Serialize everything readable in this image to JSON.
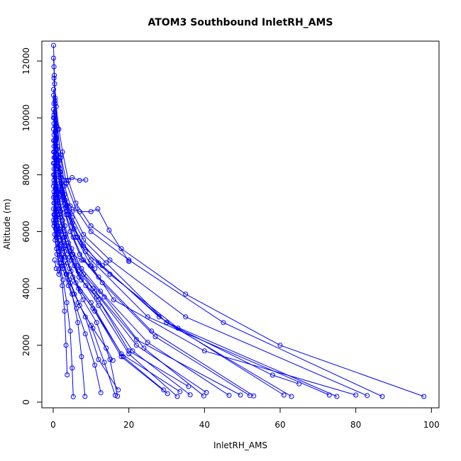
{
  "chart_data": {
    "type": "line",
    "title": "ATOM3 Southbound InletRH_AMS",
    "xlabel": "InletRH_AMS",
    "ylabel": "Altitude (m)",
    "xlim": [
      -3,
      102
    ],
    "ylim": [
      -200,
      12700
    ],
    "x_ticks": [
      "0",
      "20",
      "40",
      "60",
      "80",
      "100"
    ],
    "y_ticks": [
      "0",
      "2000",
      "4000",
      "6000",
      "8000",
      "10000",
      "12000"
    ],
    "grid": false,
    "legend": "none",
    "colors": {
      "series": "#0000ff",
      "axis": "#000000",
      "background": "#ffffff"
    },
    "marker": "open-circle",
    "series": [
      {
        "x": [
          0.1,
          0.3,
          0.5,
          0.8,
          1.2,
          1.8,
          2.5,
          4.0,
          6.0,
          10.0,
          16.0,
          40.0,
          80.0
        ],
        "y": [
          12550,
          11500,
          10600,
          9800,
          9000,
          8200,
          7400,
          6600,
          5800,
          4800,
          3600,
          1800,
          250
        ]
      },
      {
        "x": [
          0.1,
          0.4,
          0.8,
          1.5,
          2.5,
          4.0,
          6.0,
          10.0,
          18.0,
          35.0,
          60.0,
          98.0
        ],
        "y": [
          12100,
          11200,
          10400,
          9600,
          8800,
          7800,
          7000,
          6200,
          5400,
          3800,
          2000,
          200
        ]
      },
      {
        "x": [
          0.2,
          0.5,
          1.0,
          2.0,
          3.5,
          6.0,
          10.0,
          20.0,
          45.0,
          87.0
        ],
        "y": [
          11800,
          10700,
          9700,
          8700,
          7700,
          6800,
          6000,
          5000,
          2800,
          200
        ]
      },
      {
        "x": [
          0.2,
          0.6,
          1.2,
          2.0,
          3.0,
          5.0,
          8.0,
          15.0,
          35.0,
          83.0
        ],
        "y": [
          11400,
          10500,
          9600,
          8600,
          7600,
          6700,
          5900,
          5000,
          3000,
          230
        ]
      },
      {
        "x": [
          0.1,
          0.4,
          0.9,
          1.6,
          2.6,
          4.2,
          6.5,
          12.0,
          30.0,
          75.0
        ],
        "y": [
          11000,
          10200,
          9300,
          8500,
          7600,
          6700,
          5800,
          4900,
          2800,
          200
        ]
      },
      {
        "x": [
          0.1,
          0.3,
          0.7,
          1.4,
          2.3,
          3.8,
          6.0,
          10.0,
          25.0,
          73.0
        ],
        "y": [
          10800,
          10000,
          9200,
          8300,
          7400,
          6600,
          5800,
          5000,
          3000,
          250
        ]
      },
      {
        "x": [
          0.2,
          0.5,
          1.0,
          1.8,
          3.0,
          5.0,
          8.0,
          14.0,
          30.0,
          63.0
        ],
        "y": [
          10500,
          9700,
          8900,
          8100,
          7300,
          6500,
          5700,
          4900,
          2800,
          200
        ]
      },
      {
        "x": [
          0.1,
          0.5,
          1.1,
          2.0,
          3.2,
          5.0,
          8.0,
          13.0,
          28.0,
          61.0
        ],
        "y": [
          10300,
          9500,
          8700,
          7900,
          7100,
          6300,
          5500,
          4800,
          3000,
          250
        ]
      },
      {
        "x": [
          0.2,
          0.7,
          1.3,
          2.2,
          3.6,
          5.5,
          8.5,
          15.0,
          33.0,
          58.0,
          65.0
        ],
        "y": [
          10100,
          9300,
          8500,
          7700,
          6900,
          6100,
          5300,
          4500,
          2600,
          950,
          640
        ]
      },
      {
        "x": [
          0.1,
          0.4,
          0.9,
          1.7,
          2.8,
          4.5,
          7.0,
          12.0,
          26.0,
          53.0
        ],
        "y": [
          10000,
          9200,
          8400,
          7600,
          6800,
          6000,
          5200,
          4400,
          2500,
          220
        ]
      },
      {
        "x": [
          0.2,
          0.6,
          1.2,
          2.1,
          3.4,
          5.3,
          8.0,
          13.0,
          27.0,
          52.0
        ],
        "y": [
          9800,
          9000,
          8200,
          7400,
          6600,
          5800,
          5000,
          4200,
          2300,
          230
        ]
      },
      {
        "x": [
          0.1,
          0.4,
          0.8,
          1.5,
          2.5,
          4.0,
          6.3,
          10.5,
          22.0,
          49.5
        ],
        "y": [
          9600,
          8800,
          8000,
          7200,
          6400,
          5600,
          4800,
          4000,
          2200,
          250
        ]
      },
      {
        "x": [
          0.2,
          0.5,
          1.0,
          1.9,
          3.1,
          4.9,
          7.5,
          12.5,
          25.0,
          46.5
        ],
        "y": [
          9400,
          8600,
          7800,
          7000,
          6200,
          5400,
          4700,
          3900,
          2100,
          240
        ]
      },
      {
        "x": [
          0.1,
          0.3,
          0.8,
          1.5,
          2.6,
          4.2,
          6.6,
          11.0,
          22.0,
          40.5
        ],
        "y": [
          9200,
          8400,
          7600,
          6800,
          6000,
          5300,
          4600,
          3900,
          2000,
          340
        ]
      },
      {
        "x": [
          0.2,
          0.6,
          1.1,
          2.0,
          3.3,
          5.2,
          8.0,
          13.5,
          24.0,
          39.8
        ],
        "y": [
          9000,
          8200,
          7400,
          6700,
          5900,
          5200,
          4500,
          3700,
          1900,
          220
        ]
      },
      {
        "x": [
          0.1,
          0.4,
          0.9,
          1.7,
          2.8,
          4.4,
          6.8,
          11.5,
          21.0,
          36.2
        ],
        "y": [
          8800,
          8000,
          7300,
          6600,
          5800,
          5100,
          4400,
          3700,
          1800,
          260
        ]
      },
      {
        "x": [
          0.2,
          0.5,
          1.0,
          1.9,
          3.0,
          4.8,
          7.4,
          12.0,
          20.0,
          35.8
        ],
        "y": [
          8600,
          7900,
          7200,
          6500,
          5800,
          5000,
          4300,
          3600,
          1800,
          550
        ]
      },
      {
        "x": [
          0.1,
          0.3,
          0.7,
          1.4,
          2.4,
          3.9,
          6.0,
          10.0,
          18.0,
          33.5
        ],
        "y": [
          8400,
          7700,
          7000,
          6300,
          5600,
          4900,
          4200,
          3500,
          1700,
          370
        ]
      },
      {
        "x": [
          0.2,
          0.6,
          1.2,
          2.2,
          3.6,
          5.6,
          8.6,
          12.0,
          20.0,
          32.8
        ],
        "y": [
          8200,
          7500,
          6800,
          6200,
          5500,
          4800,
          4100,
          3400,
          1700,
          200
        ]
      },
      {
        "x": [
          0.1,
          0.4,
          0.8,
          1.6,
          2.7,
          4.3,
          6.7,
          10.5,
          18.0,
          30.2
        ],
        "y": [
          8000,
          7300,
          6700,
          6100,
          5400,
          4700,
          4000,
          3300,
          1600,
          300
        ]
      },
      {
        "x": [
          0.2,
          0.5,
          1.0,
          1.8,
          3.0,
          4.7,
          7.2,
          11.0,
          18.5,
          29.2
        ],
        "y": [
          7800,
          7200,
          6600,
          6000,
          5300,
          4600,
          3900,
          3200,
          1600,
          430
        ]
      },
      {
        "x": [
          0.1,
          0.3,
          0.7,
          1.3,
          2.2,
          3.6,
          5.6,
          8.5,
          12.0,
          17.2
        ],
        "y": [
          7600,
          7000,
          6400,
          5800,
          5200,
          4500,
          3800,
          3000,
          1500,
          430
        ]
      },
      {
        "x": [
          0.2,
          0.6,
          1.1,
          2.0,
          3.3,
          5.2,
          7.9,
          11.5,
          15.0,
          17.0
        ],
        "y": [
          7400,
          6800,
          6200,
          5700,
          5100,
          4400,
          3600,
          2800,
          1500,
          210
        ]
      },
      {
        "x": [
          0.1,
          0.4,
          0.9,
          1.6,
          2.7,
          4.3,
          6.6,
          10.0,
          13.5,
          16.4
        ],
        "y": [
          7200,
          6600,
          6100,
          5500,
          4900,
          4300,
          3500,
          2700,
          1400,
          240
        ]
      },
      {
        "x": [
          0.2,
          0.5,
          1.0,
          1.8,
          2.9,
          4.6,
          7.0,
          10.5,
          14.0,
          15.8
        ],
        "y": [
          7000,
          6500,
          5900,
          5400,
          4800,
          4200,
          3400,
          2600,
          1900,
          1470
        ]
      },
      {
        "x": [
          0.1,
          0.3,
          0.8,
          1.5,
          2.5,
          4.0,
          6.2,
          8.5,
          11.0,
          12.6
        ],
        "y": [
          6800,
          6300,
          5800,
          5300,
          4700,
          4100,
          3300,
          2400,
          1300,
          330
        ]
      },
      {
        "x": [
          0.2,
          0.6,
          1.2,
          2.1,
          3.4,
          5.0,
          6.5,
          7.5,
          8.4
        ],
        "y": [
          6600,
          6100,
          5600,
          5100,
          4500,
          3800,
          2800,
          1600,
          200
        ]
      },
      {
        "x": [
          0.1,
          0.4,
          0.9,
          1.6,
          2.6,
          3.6,
          4.5,
          5.0,
          5.3
        ],
        "y": [
          6400,
          5900,
          5400,
          4900,
          4300,
          3500,
          2500,
          1200,
          190
        ]
      },
      {
        "x": [
          0.2,
          0.5,
          1.0,
          1.7,
          2.4,
          3.0,
          3.4,
          3.7
        ],
        "y": [
          6200,
          5700,
          5200,
          4700,
          4100,
          3200,
          2000,
          960
        ]
      },
      {
        "x": [
          0.5,
          1.0,
          2.0,
          3.5,
          5.0,
          7.0,
          8.6
        ],
        "y": [
          8600,
          8300,
          8000,
          7800,
          7900,
          7800,
          7820
        ]
      },
      {
        "x": [
          1.0,
          2.5,
          4.5,
          7.0,
          10.0,
          11.8,
          14.8,
          20.0
        ],
        "y": [
          7500,
          7200,
          6900,
          6700,
          6700,
          6800,
          6050,
          4950
        ]
      },
      {
        "x": [
          0.6,
          1.5,
          3.0,
          5.0,
          7.5,
          9.8,
          11.0
        ],
        "y": [
          6400,
          5900,
          5500,
          5200,
          5000,
          4800,
          4700
        ]
      },
      {
        "x": [
          0.4,
          0.8,
          1.5,
          2.2,
          3.0
        ],
        "y": [
          5000,
          4700,
          4500,
          4900,
          5100
        ]
      }
    ]
  }
}
